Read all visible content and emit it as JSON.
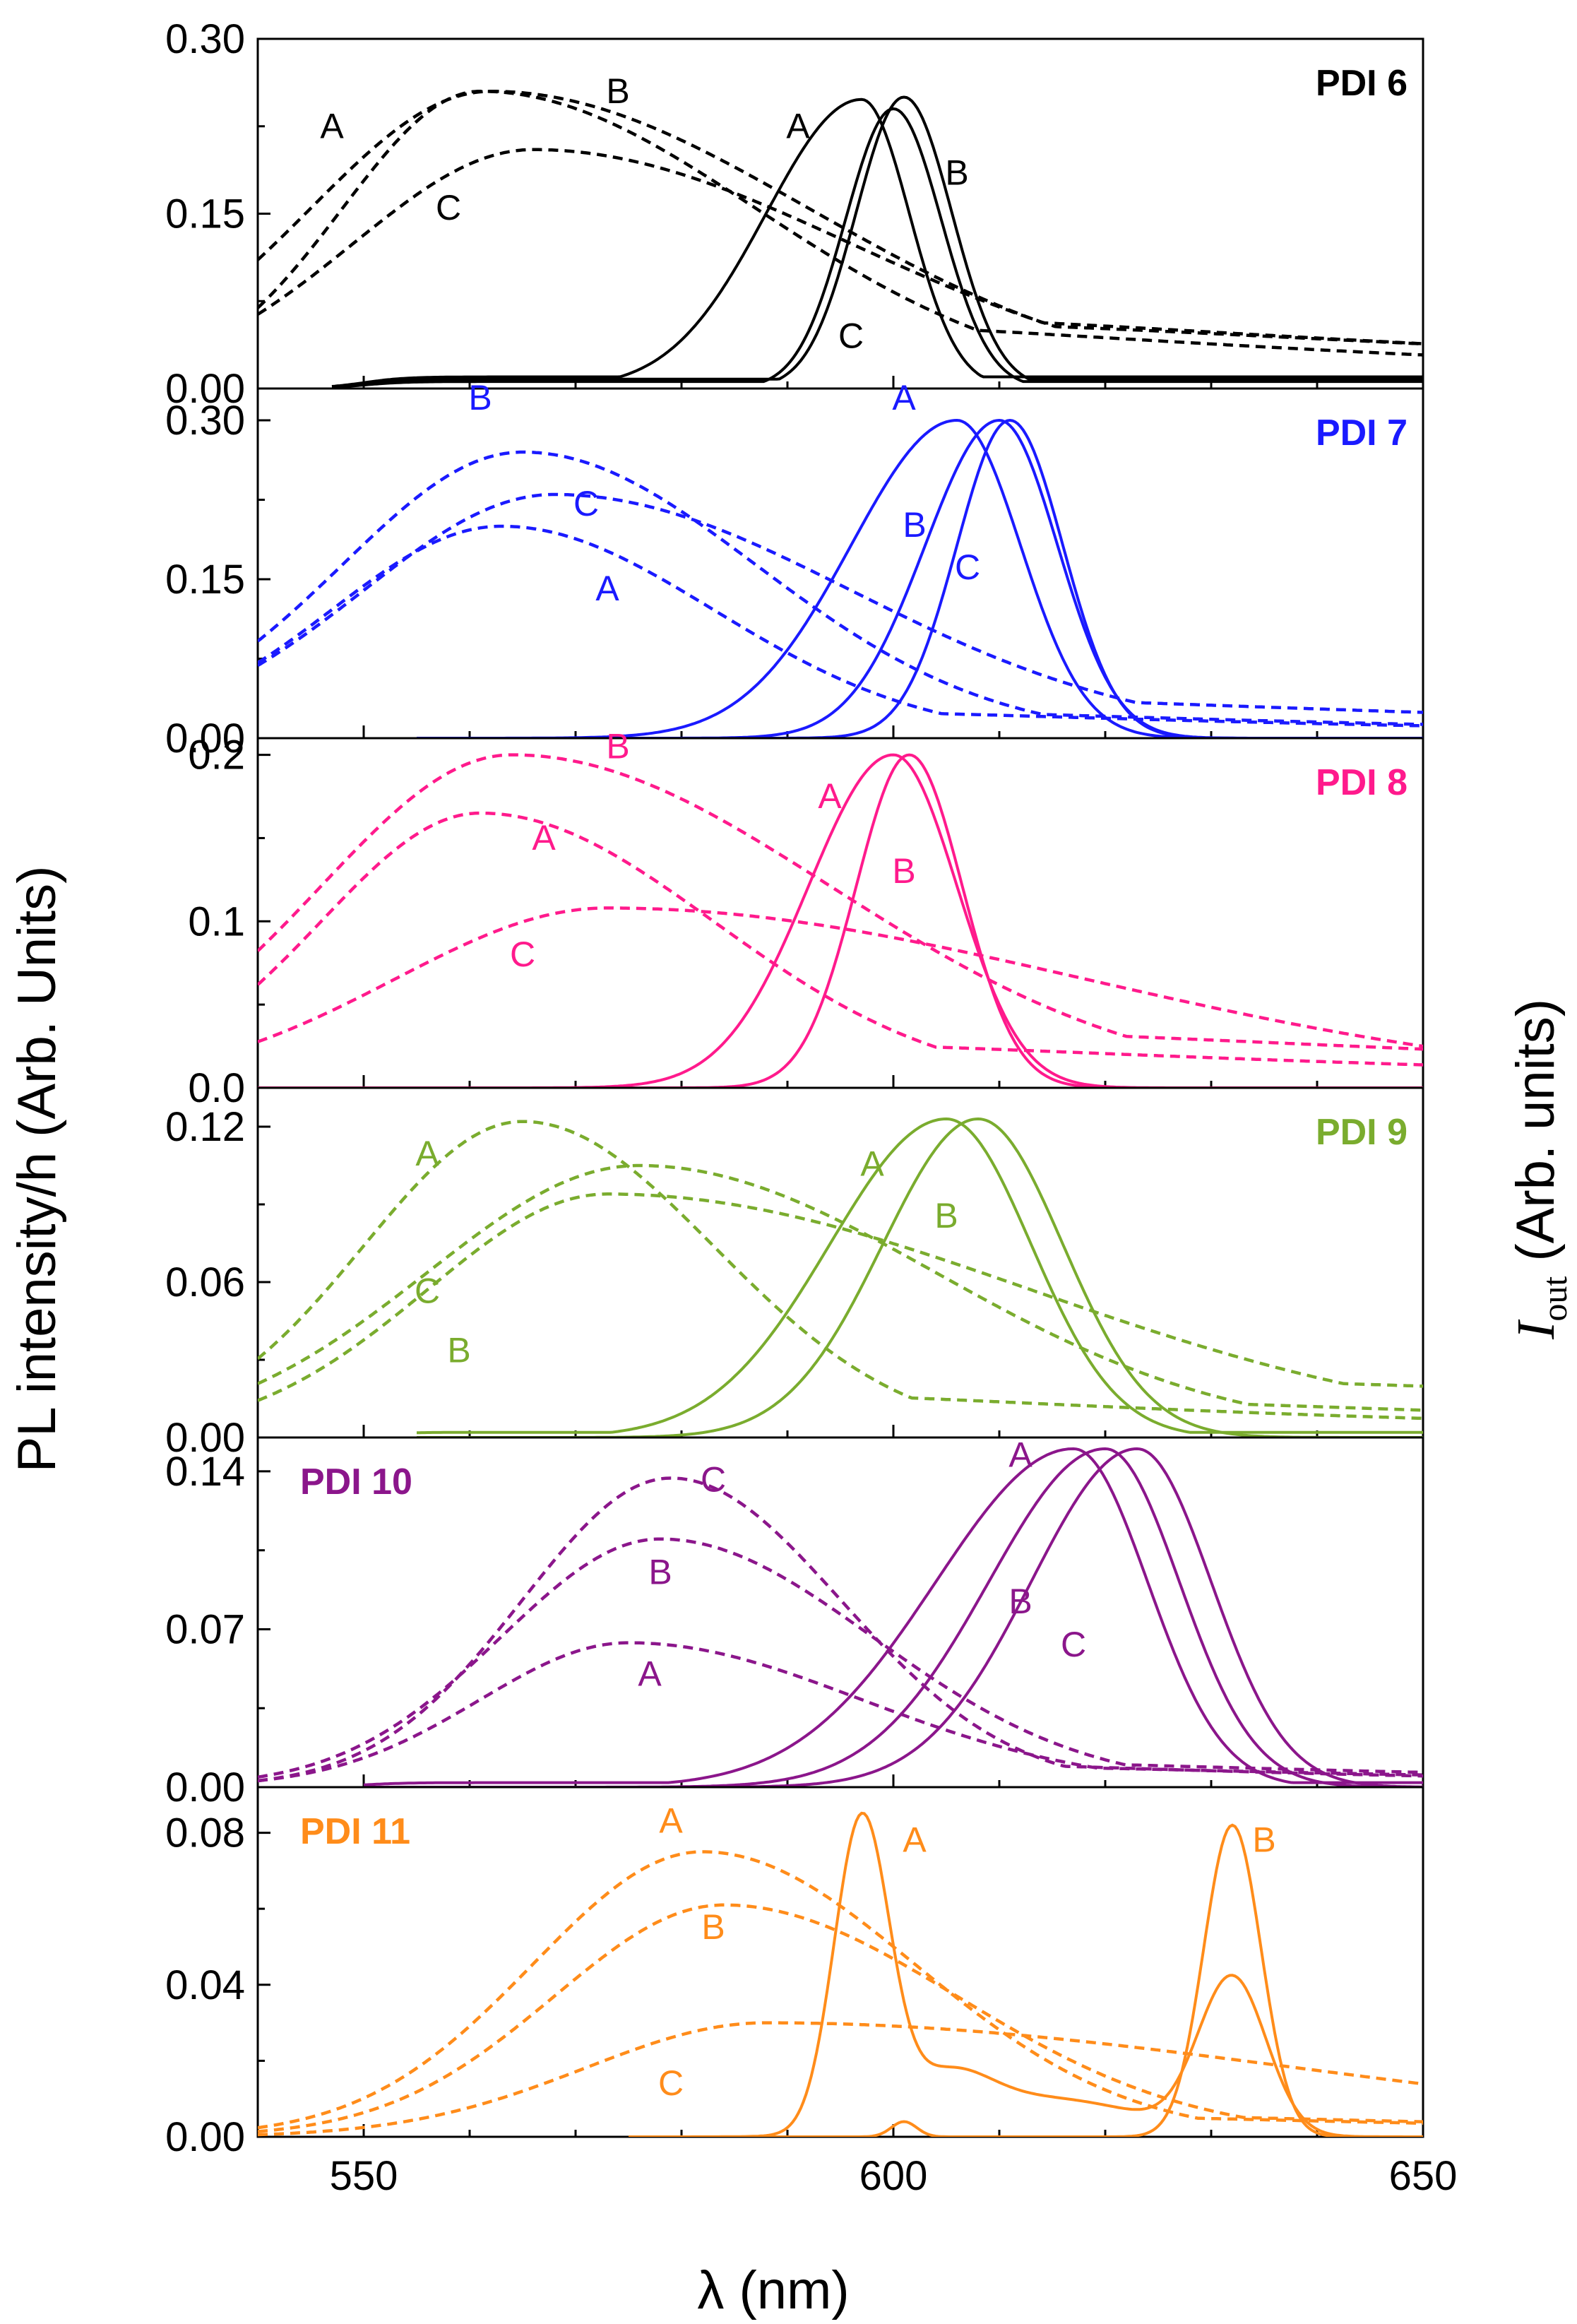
{
  "chart_data": {
    "type": "line",
    "xlabel": "λ (nm)",
    "ylabel_left": "PL intensity/h (Arb. Units)",
    "ylabel_right_main": "I",
    "ylabel_right_sub": "out",
    "ylabel_right_rest": " (Arb. units)",
    "xlim": [
      540,
      650
    ],
    "xticks": [
      550,
      600,
      650
    ],
    "panels": [
      {
        "title": "PDI 6",
        "color": "#000000",
        "title_pos": "top-right",
        "ylim": [
          0,
          0.3
        ],
        "yticks": [
          0.0,
          0.15,
          0.3
        ],
        "ytick_labels": [
          "0.00",
          "0.15",
          "0.30"
        ],
        "series": [
          {
            "name": "A (PL, dashed)",
            "style": "dashed",
            "shape": "skew",
            "center": 561,
            "amp": 0.255,
            "wl": 13,
            "wr": 26,
            "tail": 0.45,
            "tailw": 65,
            "start": 540
          },
          {
            "name": "B (PL, dashed)",
            "style": "dashed",
            "shape": "skew",
            "center": 562,
            "amp": 0.255,
            "wl": 17,
            "wr": 30,
            "tail": 0.5,
            "tailw": 75,
            "start": 540
          },
          {
            "name": "C (PL, dashed)",
            "style": "dashed",
            "shape": "skew",
            "center": 566,
            "amp": 0.205,
            "wl": 17,
            "wr": 30,
            "tail": 0.55,
            "tailw": 80,
            "start": 540
          },
          {
            "name": "A (output, solid)",
            "style": "solid",
            "shape": "skew",
            "center": 597,
            "amp": 0.248,
            "wl": 9,
            "wr": 4.5,
            "base": 0.01,
            "start": 547
          },
          {
            "name": "B (output, solid)",
            "style": "solid",
            "shape": "skew",
            "center": 601,
            "amp": 0.25,
            "wl": 4.5,
            "wr": 4.5,
            "base": 0.008,
            "start": 547
          },
          {
            "name": "C (output, solid)",
            "style": "solid",
            "shape": "skew",
            "center": 600,
            "amp": 0.24,
            "wl": 4.5,
            "wr": 4.5,
            "base": 0.006,
            "start": 547
          }
        ],
        "annotations": [
          {
            "text": "A",
            "x": 547,
            "y": 0.215
          },
          {
            "text": "B",
            "x": 574,
            "y": 0.245
          },
          {
            "text": "C",
            "x": 558,
            "y": 0.145
          },
          {
            "text": "A",
            "x": 591,
            "y": 0.215
          },
          {
            "text": "B",
            "x": 606,
            "y": 0.175
          },
          {
            "text": "C",
            "x": 596,
            "y": 0.035
          }
        ]
      },
      {
        "title": "PDI 7",
        "color": "#1a1aff",
        "title_pos": "top-right",
        "ylim": [
          0,
          0.33
        ],
        "yticks": [
          0.0,
          0.15,
          0.3
        ],
        "ytick_labels": [
          "0.00",
          "0.15",
          "0.30"
        ],
        "series": [
          {
            "name": "B (PL, dashed)",
            "style": "dashed",
            "shape": "skew",
            "center": 565,
            "amp": 0.27,
            "wl": 17,
            "wr": 22,
            "tail": 0.2,
            "tailw": 60,
            "start": 540
          },
          {
            "name": "C (PL, dashed)",
            "style": "dashed",
            "shape": "skew",
            "center": 568,
            "amp": 0.23,
            "wl": 18,
            "wr": 28,
            "tail": 0.35,
            "tailw": 70,
            "start": 540
          },
          {
            "name": "A (PL, dashed)",
            "style": "dashed",
            "shape": "skew",
            "center": 563,
            "amp": 0.2,
            "wl": 16,
            "wr": 20,
            "tail": 0.25,
            "tailw": 60,
            "start": 540
          },
          {
            "name": "A (output, solid)",
            "style": "solid",
            "shape": "skew",
            "center": 606,
            "amp": 0.3,
            "wl": 10,
            "wr": 6,
            "base": 0.0,
            "start": 555
          },
          {
            "name": "B (output, solid)",
            "style": "solid",
            "shape": "skew",
            "center": 610,
            "amp": 0.3,
            "wl": 7,
            "wr": 5.5,
            "base": 0.0,
            "start": 555
          },
          {
            "name": "C (output, solid)",
            "style": "solid",
            "shape": "skew",
            "center": 611,
            "amp": 0.3,
            "wl": 5,
            "wr": 5,
            "base": 0.0,
            "start": 555
          }
        ],
        "annotations": [
          {
            "text": "B",
            "x": 561,
            "y": 0.31
          },
          {
            "text": "C",
            "x": 571,
            "y": 0.21
          },
          {
            "text": "A",
            "x": 573,
            "y": 0.13
          },
          {
            "text": "A",
            "x": 601,
            "y": 0.31
          },
          {
            "text": "B",
            "x": 602,
            "y": 0.19
          },
          {
            "text": "C",
            "x": 607,
            "y": 0.15
          }
        ]
      },
      {
        "title": "PDI 8",
        "color": "#ff1a8c",
        "title_pos": "top-right",
        "ylim": [
          0,
          0.21
        ],
        "yticks": [
          0.0,
          0.1,
          0.2
        ],
        "ytick_labels": [
          "0.0",
          "0.1",
          "0.2"
        ],
        "series": [
          {
            "name": "B (PL, dashed)",
            "style": "dashed",
            "shape": "skew",
            "center": 564,
            "amp": 0.2,
            "wl": 18,
            "wr": 30,
            "tail": 0.35,
            "tailw": 80,
            "start": 540
          },
          {
            "name": "A (PL, dashed)",
            "style": "dashed",
            "shape": "skew",
            "center": 561,
            "amp": 0.165,
            "wl": 15,
            "wr": 22,
            "tail": 0.3,
            "tailw": 70,
            "start": 540
          },
          {
            "name": "C (PL, dashed)",
            "style": "dashed",
            "shape": "skew",
            "center": 573,
            "amp": 0.108,
            "wl": 20,
            "wr": 45,
            "tail": 0.3,
            "tailw": 90,
            "start": 540
          },
          {
            "name": "A (output, solid)",
            "style": "solid",
            "shape": "skew",
            "center": 600,
            "amp": 0.2,
            "wl": 8,
            "wr": 6,
            "base": 0.0,
            "start": 540
          },
          {
            "name": "B (output, solid)",
            "style": "solid",
            "shape": "skew",
            "center": 601.5,
            "amp": 0.2,
            "wl": 5,
            "wr": 5,
            "base": 0.0,
            "start": 540
          }
        ],
        "annotations": [
          {
            "text": "B",
            "x": 574,
            "y": 0.198
          },
          {
            "text": "A",
            "x": 567,
            "y": 0.143
          },
          {
            "text": "C",
            "x": 565,
            "y": 0.073
          },
          {
            "text": "A",
            "x": 594,
            "y": 0.168
          },
          {
            "text": "B",
            "x": 601,
            "y": 0.123
          }
        ]
      },
      {
        "title": "PDI 9",
        "color": "#7aac2e",
        "title_pos": "top-right",
        "ylim": [
          0,
          0.135
        ],
        "yticks": [
          0.0,
          0.06,
          0.12
        ],
        "ytick_labels": [
          "0.00",
          "0.06",
          "0.12"
        ],
        "series": [
          {
            "name": "A (PL, dashed)",
            "style": "dashed",
            "shape": "skew",
            "center": 565,
            "amp": 0.122,
            "wl": 15,
            "wr": 18,
            "tail": 0.25,
            "tailw": 60,
            "start": 540
          },
          {
            "name": "C (PL, dashed)",
            "style": "dashed",
            "shape": "skew",
            "center": 576,
            "amp": 0.105,
            "wl": 20,
            "wr": 28,
            "tail": 0.3,
            "tailw": 70,
            "start": 540
          },
          {
            "name": "B (PL, dashed)",
            "style": "dashed",
            "shape": "skew",
            "center": 573,
            "amp": 0.094,
            "wl": 17,
            "wr": 40,
            "tail": 0.5,
            "tailw": 100,
            "start": 540
          },
          {
            "name": "A (output, solid)",
            "style": "solid",
            "shape": "skew",
            "center": 605,
            "amp": 0.123,
            "wl": 11,
            "wr": 8,
            "base": 0.002,
            "start": 555
          },
          {
            "name": "B (output, solid)",
            "style": "solid",
            "shape": "skew",
            "center": 608,
            "amp": 0.123,
            "wl": 9,
            "wr": 8,
            "base": 0.0,
            "start": 555
          }
        ],
        "annotations": [
          {
            "text": "A",
            "x": 556,
            "y": 0.105
          },
          {
            "text": "C",
            "x": 556,
            "y": 0.052
          },
          {
            "text": "B",
            "x": 559,
            "y": 0.029
          },
          {
            "text": "A",
            "x": 598,
            "y": 0.101
          },
          {
            "text": "B",
            "x": 605,
            "y": 0.081
          }
        ]
      },
      {
        "title": "PDI 10",
        "color": "#8b168b",
        "title_pos": "top-left",
        "ylim": [
          0,
          0.155
        ],
        "yticks": [
          0.0,
          0.07,
          0.14
        ],
        "ytick_labels": [
          "0.00",
          "0.07",
          "0.14"
        ],
        "series": [
          {
            "name": "C (PL, dashed)",
            "style": "dashed",
            "shape": "skew",
            "center": 579,
            "amp": 0.137,
            "wl": 14,
            "wr": 16,
            "tail": 0.15,
            "tailw": 50,
            "start": 540
          },
          {
            "name": "B (PL, dashed)",
            "style": "dashed",
            "shape": "skew",
            "center": 578,
            "amp": 0.11,
            "wl": 15,
            "wr": 20,
            "tail": 0.2,
            "tailw": 60,
            "start": 540
          },
          {
            "name": "A (PL, dashed)",
            "style": "dashed",
            "shape": "skew",
            "center": 575,
            "amp": 0.064,
            "wl": 14,
            "wr": 22,
            "tail": 0.3,
            "tailw": 60,
            "start": 540
          },
          {
            "name": "A (output, solid)",
            "style": "solid",
            "shape": "skew",
            "center": 617,
            "amp": 0.15,
            "wl": 13,
            "wr": 7,
            "base": 0.002,
            "start": 550
          },
          {
            "name": "B (output, solid)",
            "style": "solid",
            "shape": "skew",
            "center": 620,
            "amp": 0.15,
            "wl": 11,
            "wr": 7,
            "base": 0.0,
            "start": 550
          },
          {
            "name": "C (output, solid)",
            "style": "solid",
            "shape": "skew",
            "center": 623,
            "amp": 0.15,
            "wl": 10,
            "wr": 7,
            "base": 0.0,
            "start": 550
          }
        ],
        "annotations": [
          {
            "text": "C",
            "x": 583,
            "y": 0.131
          },
          {
            "text": "B",
            "x": 578,
            "y": 0.09
          },
          {
            "text": "A",
            "x": 577,
            "y": 0.045
          },
          {
            "text": "A",
            "x": 612,
            "y": 0.142
          },
          {
            "text": "B",
            "x": 612,
            "y": 0.077
          },
          {
            "text": "C",
            "x": 617,
            "y": 0.058
          }
        ]
      },
      {
        "title": "PDI 11",
        "color": "#ff8c1a",
        "title_pos": "top-left",
        "ylim": [
          0,
          0.092
        ],
        "yticks": [
          0.0,
          0.04,
          0.08
        ],
        "ytick_labels": [
          "0.00",
          "0.04",
          "0.08"
        ],
        "series": [
          {
            "name": "A (PL, dashed)",
            "style": "dashed",
            "shape": "skew",
            "center": 582,
            "amp": 0.075,
            "wl": 16,
            "wr": 20,
            "tail": 0.15,
            "tailw": 60,
            "start": 540
          },
          {
            "name": "B (PL, dashed)",
            "style": "dashed",
            "shape": "skew",
            "center": 584,
            "amp": 0.061,
            "wl": 16,
            "wr": 22,
            "tail": 0.2,
            "tailw": 60,
            "start": 540
          },
          {
            "name": "C (PL, dashed)",
            "style": "dashed",
            "shape": "skew",
            "center": 588,
            "amp": 0.03,
            "wl": 17,
            "wr": 50,
            "tail": 0.4,
            "tailw": 80,
            "start": 540
          },
          {
            "name": "A (output, solid)",
            "style": "solid",
            "shape": "double",
            "p1": 597,
            "a1": 0.082,
            "w1": 2.6,
            "p2": 632,
            "a2": 0.041,
            "w2": 3.2,
            "bump": 0.01,
            "start": 575
          },
          {
            "name": "B (output, solid)",
            "style": "solid",
            "shape": "double",
            "p1": 601,
            "a1": 0.004,
            "w1": 1.2,
            "p2": 632,
            "a2": 0.082,
            "w2": 2.7,
            "bump": 0.0,
            "start": 575
          }
        ],
        "annotations": [
          {
            "text": "A",
            "x": 579,
            "y": 0.08
          },
          {
            "text": "B",
            "x": 583,
            "y": 0.052
          },
          {
            "text": "C",
            "x": 579,
            "y": 0.011
          },
          {
            "text": "A",
            "x": 602,
            "y": 0.075
          },
          {
            "text": "B",
            "x": 635,
            "y": 0.075
          }
        ]
      }
    ]
  }
}
